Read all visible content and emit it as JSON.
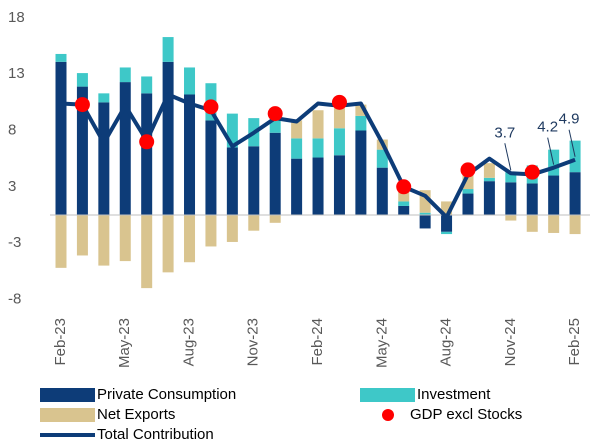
{
  "chart_data": {
    "type": "bar",
    "stacked": true,
    "categories": [
      "Feb-23",
      null,
      null,
      "May-23",
      null,
      null,
      "Aug-23",
      null,
      null,
      "Nov-23",
      null,
      null,
      "Feb-24",
      null,
      null,
      "May-24",
      null,
      null,
      "Aug-24",
      null,
      null,
      "Nov-24",
      null,
      null,
      "Feb-25"
    ],
    "ylim": [
      -8,
      18
    ],
    "yticks": [
      {
        "value": -7.5,
        "label": "-8"
      },
      {
        "value": -2.5,
        "label": "-3"
      },
      {
        "value": 2.5,
        "label": "3"
      },
      {
        "value": 7.5,
        "label": "8"
      },
      {
        "value": 12.5,
        "label": "13"
      },
      {
        "value": 17.5,
        "label": "18"
      }
    ],
    "series": [
      {
        "name": "Private Consumption",
        "type": "bar",
        "color": "#0d3c78",
        "values": [
          13.6,
          11.4,
          10.0,
          11.8,
          10.8,
          13.6,
          10.7,
          8.4,
          6.0,
          6.1,
          7.3,
          5.0,
          5.1,
          5.3,
          7.5,
          4.2,
          0.8,
          -1.2,
          -1.5,
          1.9,
          3.0,
          2.9,
          2.8,
          3.5,
          3.8
        ]
      },
      {
        "name": "Investment",
        "type": "bar",
        "color": "#3ec8c8",
        "values": [
          0.7,
          1.2,
          0.8,
          1.3,
          1.5,
          2.2,
          2.4,
          3.3,
          3.0,
          2.5,
          2.2,
          1.8,
          1.7,
          2.4,
          1.3,
          1.6,
          0.4,
          0.2,
          -0.2,
          0.4,
          0.3,
          0.9,
          1.6,
          2.3,
          2.8
        ]
      },
      {
        "name": "Net Exports",
        "type": "bar",
        "color": "#d9c48f",
        "values": [
          -4.7,
          -3.6,
          -4.5,
          -4.1,
          -6.5,
          -5.1,
          -4.2,
          -2.8,
          -2.4,
          -1.4,
          -0.7,
          1.6,
          2.5,
          2.2,
          1.0,
          0.9,
          1.6,
          2.0,
          1.2,
          2.0,
          1.3,
          -0.5,
          -1.5,
          -1.6,
          -1.7
        ]
      },
      {
        "name": "GDP excl Stocks",
        "type": "scatter",
        "color": "#ff0000",
        "values": [
          null,
          9.8,
          null,
          null,
          6.5,
          null,
          null,
          9.6,
          null,
          null,
          9.0,
          null,
          null,
          10.0,
          null,
          null,
          2.5,
          null,
          null,
          4.0,
          null,
          null,
          3.8,
          null,
          null
        ]
      },
      {
        "name": "Total Contribution",
        "type": "line",
        "color": "#0d3c78",
        "values": [
          9.9,
          9.8,
          6.4,
          9.7,
          6.6,
          10.7,
          9.9,
          9.3,
          6.1,
          7.3,
          8.6,
          8.3,
          9.9,
          9.7,
          9.9,
          6.4,
          2.5,
          1.7,
          -0.2,
          3.6,
          5.0,
          3.7,
          3.6,
          4.2,
          4.9
        ],
        "value_labels": [
          null,
          null,
          null,
          null,
          null,
          null,
          null,
          null,
          null,
          null,
          null,
          null,
          null,
          null,
          null,
          null,
          null,
          null,
          null,
          null,
          null,
          "3.7",
          null,
          "4.2",
          "4.9"
        ]
      }
    ]
  }
}
